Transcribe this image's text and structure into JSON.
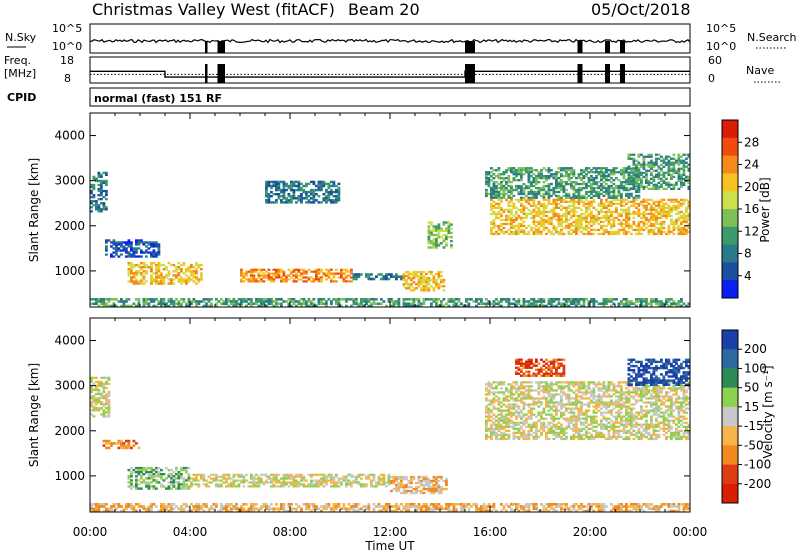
{
  "header": {
    "station": "Christmas Valley West (fitACF)",
    "beam": "Beam 20",
    "date": "05/Oct/2018"
  },
  "left_labels": {
    "nsky": "N.Sky",
    "freq_line1": "Freq.",
    "freq_line2": "[MHz]",
    "cpid": "CPID"
  },
  "right_labels": {
    "nsearch": "N.Search",
    "nave": "Nave"
  },
  "noise_axis": {
    "left_top": "10^5",
    "left_bottom": "10^0",
    "right_top": "10^5",
    "right_bottom": "10^0"
  },
  "freq_axis": {
    "left_top": "18",
    "left_bottom": "8",
    "right_top": "60",
    "right_bottom": "0"
  },
  "cpid_text": "normal (fast) 151 RF",
  "power_colorbar": {
    "label": "Power [dB]",
    "ticks": [
      "28",
      "24",
      "20",
      "16",
      "12",
      "8",
      "4"
    ],
    "colors": [
      "#d81e05",
      "#ef4a0f",
      "#f58a1a",
      "#f5c21f",
      "#cde04c",
      "#7fbf5a",
      "#3d9a6a",
      "#2a7a8a",
      "#1b4fa0",
      "#0a1ff5"
    ]
  },
  "velocity_colorbar": {
    "label": "Velocity [m s⁻¹]",
    "ticks": [
      "200",
      "100",
      "50",
      "15",
      "-15",
      "-50",
      "-100",
      "-200"
    ],
    "colors": [
      "#1b3fa8",
      "#2d6aa0",
      "#2e8b57",
      "#8fd14f",
      "#c8c8c8",
      "#f5b54a",
      "#f08a1e",
      "#e03c14",
      "#d81e05"
    ]
  },
  "chart_data": [
    {
      "type": "line",
      "name": "noise-panel",
      "x_ticks": [
        "00:00",
        "04:00",
        "08:00",
        "12:00",
        "16:00",
        "20:00",
        "00:00"
      ],
      "xlim": [
        0,
        24
      ],
      "series": [
        {
          "name": "N.Sky",
          "values_log10": [
            1.0,
            1.0,
            1.0,
            1.0,
            1.0,
            1.0,
            1.0
          ]
        }
      ],
      "gaps_hours": [
        [
          4.6,
          4.7
        ],
        [
          5.1,
          5.4
        ],
        [
          15.0,
          15.4
        ],
        [
          19.5,
          19.7
        ],
        [
          20.6,
          20.8
        ],
        [
          21.2,
          21.4
        ]
      ]
    },
    {
      "type": "line",
      "name": "frequency-panel",
      "xlim": [
        0,
        24
      ],
      "freq_steps": [
        {
          "from": 0,
          "to": 3,
          "value": 12.5
        },
        {
          "from": 3,
          "to": 15,
          "value": 10.3
        },
        {
          "from": 15,
          "to": 24,
          "value": 12.5
        }
      ],
      "nave_level": 20
    },
    {
      "type": "heatmap",
      "name": "power-panel",
      "title": "",
      "xlabel": "",
      "ylabel": "Slant Range [km]",
      "x_ticks": [
        "00:00",
        "04:00",
        "08:00",
        "12:00",
        "16:00",
        "20:00",
        "00:00"
      ],
      "y_ticks": [
        "1000",
        "2000",
        "3000",
        "4000"
      ],
      "xlim": [
        0,
        24
      ],
      "ylim": [
        200,
        4500
      ],
      "regions": [
        {
          "t0": 0.0,
          "t1": 0.7,
          "r0": 2300,
          "r1": 3200,
          "level": 2
        },
        {
          "t0": 0.6,
          "t1": 2.8,
          "r0": 1300,
          "r1": 1700,
          "level": 1
        },
        {
          "t0": 1.5,
          "t1": 4.5,
          "r0": 700,
          "r1": 1200,
          "level": 6
        },
        {
          "t0": 6.0,
          "t1": 10.5,
          "r0": 750,
          "r1": 1050,
          "level": 7
        },
        {
          "t0": 10.5,
          "t1": 12.5,
          "r0": 800,
          "r1": 950,
          "level": 2
        },
        {
          "t0": 12.5,
          "t1": 14.2,
          "r0": 550,
          "r1": 1000,
          "level": 6
        },
        {
          "t0": 13.5,
          "t1": 14.5,
          "r0": 1500,
          "r1": 2100,
          "level": 4
        },
        {
          "t0": 7.0,
          "t1": 10.0,
          "r0": 2500,
          "r1": 3000,
          "level": 2
        },
        {
          "t0": 15.8,
          "t1": 22.0,
          "r0": 2600,
          "r1": 3300,
          "level": 3
        },
        {
          "t0": 16.0,
          "t1": 24.0,
          "r0": 1800,
          "r1": 2600,
          "level": 6
        },
        {
          "t0": 21.5,
          "t1": 24.0,
          "r0": 2800,
          "r1": 3600,
          "level": 3
        },
        {
          "t0": 0.0,
          "t1": 24.0,
          "r0": 200,
          "r1": 400,
          "level": 3
        }
      ]
    },
    {
      "type": "heatmap",
      "name": "velocity-panel",
      "title": "",
      "xlabel": "Time UT",
      "ylabel": "Slant Range [km]",
      "x_ticks": [
        "00:00",
        "04:00",
        "08:00",
        "12:00",
        "16:00",
        "20:00",
        "00:00"
      ],
      "y_ticks": [
        "1000",
        "2000",
        "3000",
        "4000"
      ],
      "xlim": [
        0,
        24
      ],
      "ylim": [
        200,
        4500
      ],
      "regions": [
        {
          "t0": 0.0,
          "t1": 0.8,
          "r0": 2300,
          "r1": 3200,
          "level": 4
        },
        {
          "t0": 1.5,
          "t1": 4.0,
          "r0": 700,
          "r1": 1200,
          "level": 3
        },
        {
          "t0": 4.0,
          "t1": 12.0,
          "r0": 750,
          "r1": 1050,
          "level": 4
        },
        {
          "t0": 12.0,
          "t1": 14.3,
          "r0": 600,
          "r1": 1000,
          "level": 5
        },
        {
          "t0": 0.5,
          "t1": 2.0,
          "r0": 1600,
          "r1": 1800,
          "level": 6
        },
        {
          "t0": 15.8,
          "t1": 24.0,
          "r0": 1800,
          "r1": 3100,
          "level": 4
        },
        {
          "t0": 17.0,
          "t1": 19.0,
          "r0": 3200,
          "r1": 3600,
          "level": 7
        },
        {
          "t0": 21.5,
          "t1": 24.0,
          "r0": 3000,
          "r1": 3600,
          "level": 0
        },
        {
          "t0": 0.0,
          "t1": 24.0,
          "r0": 200,
          "r1": 400,
          "level": 5
        }
      ]
    }
  ]
}
